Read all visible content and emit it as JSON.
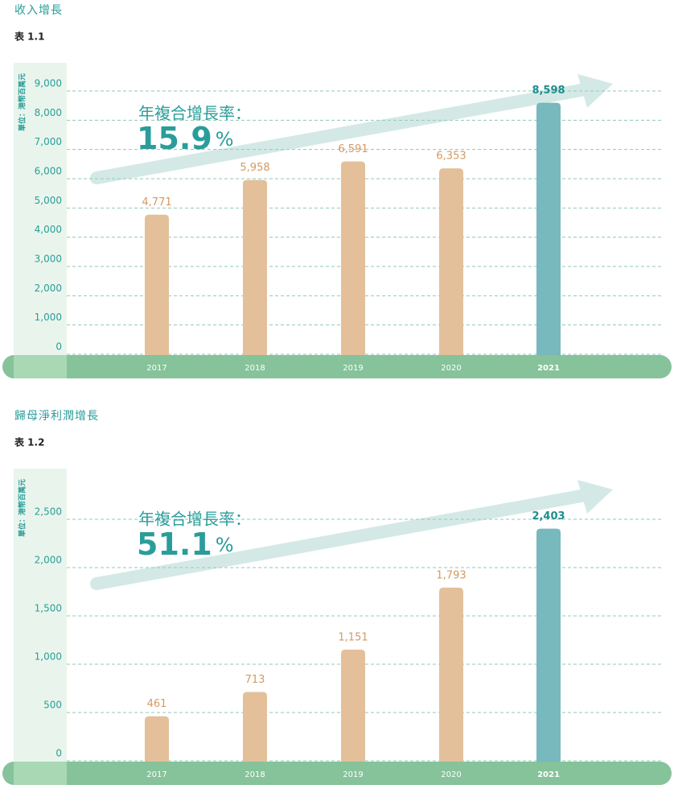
{
  "chart_data": [
    {
      "type": "bar",
      "title": "收入增長",
      "subtitle": "表 1.1",
      "y_label": "單位：港幣百萬元",
      "annotation": "年複合增長率：",
      "cagr": "15.9",
      "cagr_unit": "%",
      "categories": [
        "2017",
        "2018",
        "2019",
        "2020",
        "2021"
      ],
      "values": [
        4771,
        5958,
        6591,
        6353,
        8598
      ],
      "value_labels": [
        "4,771",
        "5,958",
        "6,591",
        "6,353",
        "8,598"
      ],
      "colors": [
        "#e3c09a",
        "#e3c09a",
        "#e3c09a",
        "#e3c09a",
        "#77b9bc"
      ],
      "label_colors": [
        "#d39a62",
        "#d39a62",
        "#d39a62",
        "#d39a62",
        "#1f8e8c"
      ],
      "ylim": [
        0,
        9000
      ],
      "yticks": [
        0,
        {
          "value": 1000,
          "label": "1,000"
        },
        {
          "value": 2000,
          "label": "2,000"
        },
        {
          "value": 3000,
          "label": "3,000"
        },
        {
          "value": 4000,
          "label": "4,000"
        },
        {
          "value": 5000,
          "label": "5,000"
        },
        {
          "value": 6000,
          "label": "6,000"
        },
        {
          "value": 7000,
          "label": "7,000"
        },
        {
          "value": 8000,
          "label": "8,000"
        },
        {
          "value": 9000,
          "label": "9,000"
        }
      ],
      "grid": true
    },
    {
      "type": "bar",
      "title": "歸母淨利潤增長",
      "subtitle": "表 1.2",
      "y_label": "單位：港幣百萬元",
      "annotation": "年複合增長率：",
      "cagr": "51.1",
      "cagr_unit": "%",
      "categories": [
        "2017",
        "2018",
        "2019",
        "2020",
        "2021"
      ],
      "values": [
        461,
        713,
        1151,
        1793,
        2403
      ],
      "value_labels": [
        "461",
        "713",
        "1,151",
        "1,793",
        "2,403"
      ],
      "colors": [
        "#e3c09a",
        "#e3c09a",
        "#e3c09a",
        "#e3c09a",
        "#77b9bc"
      ],
      "label_colors": [
        "#d39a62",
        "#d39a62",
        "#d39a62",
        "#d39a62",
        "#1f8e8c"
      ],
      "ylim": [
        0,
        2500
      ],
      "yticks": [
        0,
        500,
        {
          "value": 1000,
          "label": "1,000"
        },
        {
          "value": 1500,
          "label": "1,500"
        },
        {
          "value": 2000,
          "label": "2,000"
        },
        {
          "value": 2500,
          "label": "2,500"
        }
      ],
      "grid": true
    }
  ]
}
